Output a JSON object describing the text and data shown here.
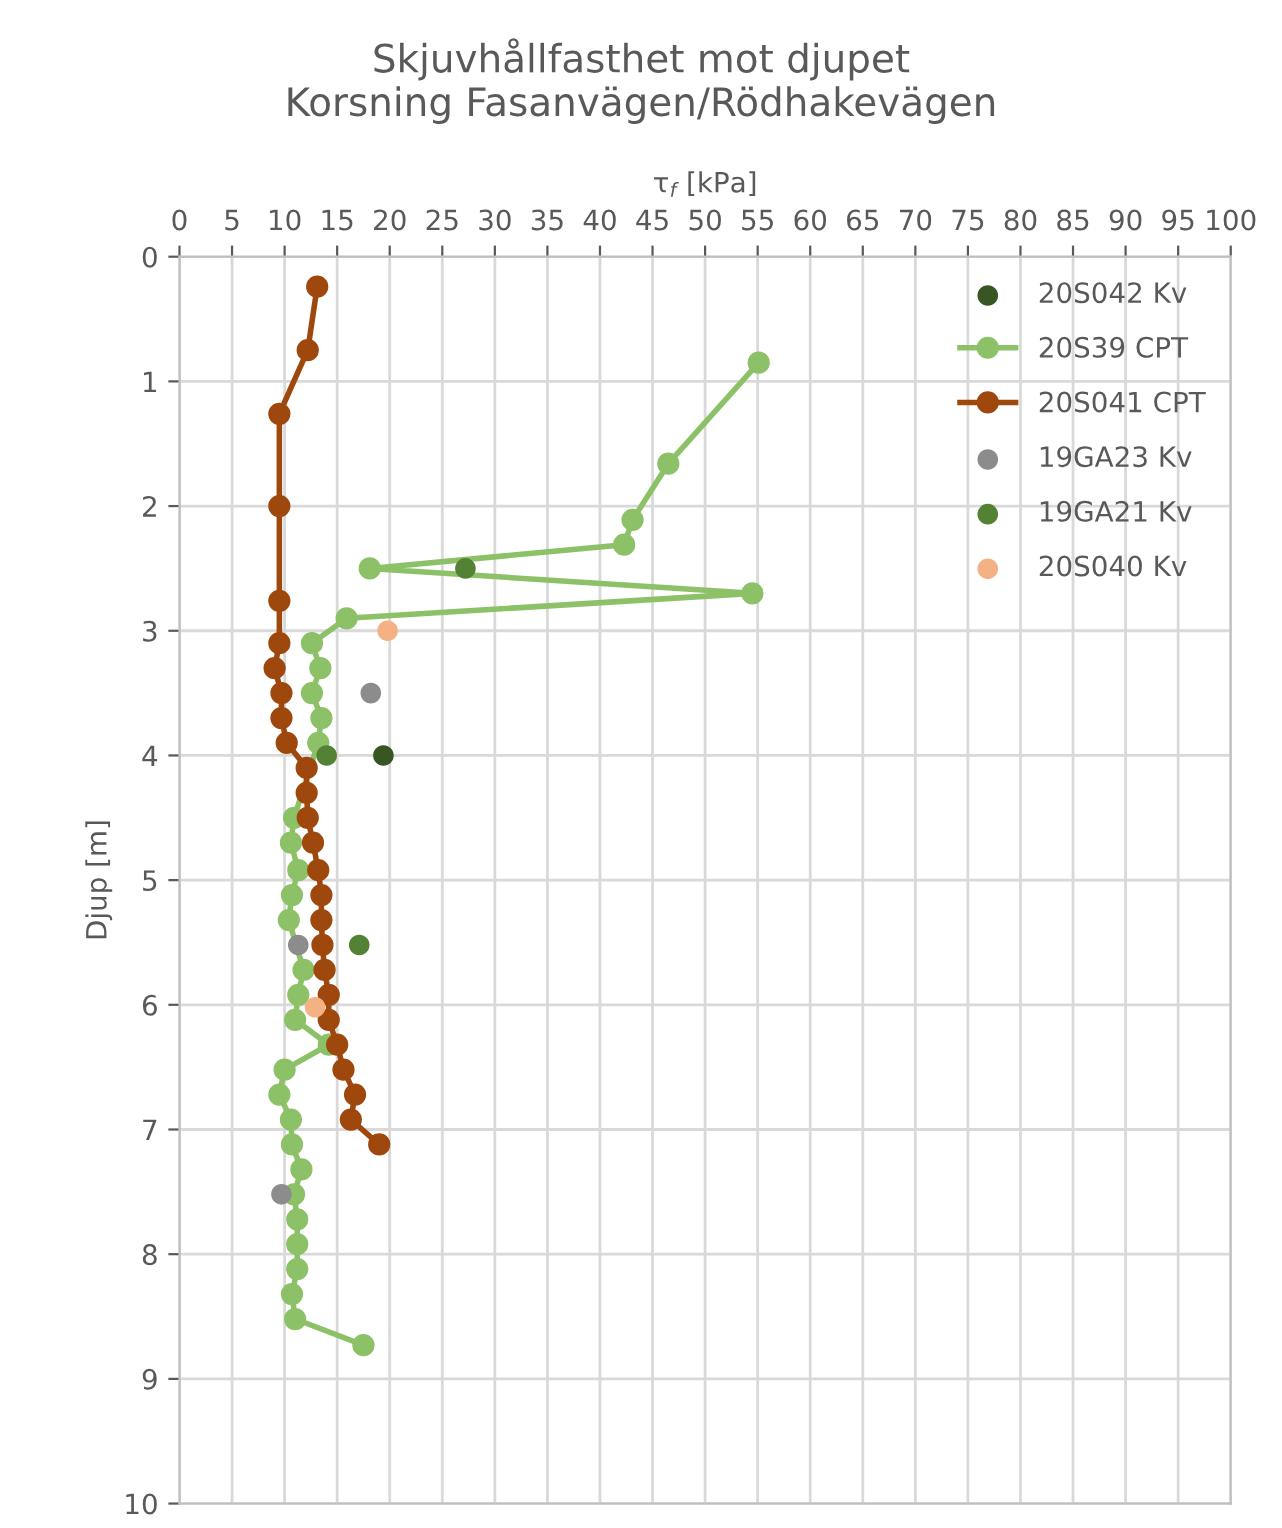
{
  "chart_data": {
    "type": "line",
    "title": "Skjuvhållfasthet mot djupet\nKorsning Fasanvägen/Rödhakevägen",
    "xlabel": "τ$_{f}$ [kPa]",
    "ylabel": "Djup [m]",
    "xlim": [
      0,
      100
    ],
    "xticks": [
      0,
      5,
      10,
      15,
      20,
      25,
      30,
      35,
      40,
      45,
      50,
      55,
      60,
      65,
      70,
      75,
      80,
      85,
      90,
      95,
      100
    ],
    "ylim": [
      10,
      0
    ],
    "yticks": [
      0,
      1,
      2,
      3,
      4,
      5,
      6,
      7,
      8,
      9,
      10
    ],
    "grid": true,
    "legend": "top right",
    "marker": "circle",
    "series": [
      {
        "name": "20S042 Kv",
        "type": "scatter",
        "color": "#375623",
        "x": [
          19.4
        ],
        "values": [
          4.0
        ]
      },
      {
        "name": "20S39 CPT",
        "color": "#8cc168",
        "x": [
          55.1,
          46.5,
          43.1,
          42.3,
          18.1,
          54.5,
          15.9,
          12.6,
          13.4,
          12.6,
          13.5,
          13.2,
          10.9,
          10.6,
          11.3,
          10.7,
          10.4,
          11.8,
          11.3,
          11.0,
          14.2,
          10.0,
          9.5,
          10.6,
          10.7,
          11.6,
          10.9,
          11.2,
          11.2,
          11.2,
          10.7,
          11.0,
          17.5
        ],
        "values": [
          0.85,
          1.66,
          2.11,
          2.31,
          2.5,
          2.7,
          2.9,
          3.1,
          3.3,
          3.5,
          3.7,
          3.9,
          4.5,
          4.7,
          4.92,
          5.12,
          5.32,
          5.72,
          5.92,
          6.12,
          6.32,
          6.52,
          6.72,
          6.92,
          7.12,
          7.32,
          7.52,
          7.72,
          7.92,
          8.12,
          8.32,
          8.52,
          8.73
        ]
      },
      {
        "name": "20S041 CPT",
        "color": "#9e480e",
        "x": [
          13.1,
          12.2,
          9.5,
          9.5,
          9.5,
          9.5,
          9.05,
          9.7,
          9.7,
          10.2,
          12.1,
          12.1,
          12.2,
          12.7,
          13.2,
          13.5,
          13.5,
          13.6,
          13.8,
          14.2,
          14.2,
          15.0,
          15.6,
          16.7,
          16.3,
          19.0
        ],
        "values": [
          0.24,
          0.75,
          1.26,
          2.0,
          2.76,
          3.1,
          3.3,
          3.5,
          3.7,
          3.9,
          4.1,
          4.3,
          4.5,
          4.7,
          4.92,
          5.12,
          5.32,
          5.52,
          5.72,
          5.92,
          6.12,
          6.32,
          6.52,
          6.72,
          6.92,
          7.12
        ]
      },
      {
        "name": "19GA23 Kv",
        "type": "scatter",
        "color": "#8c8c8c",
        "x": [
          18.2,
          11.3,
          9.7
        ],
        "values": [
          3.5,
          5.52,
          7.52
        ]
      },
      {
        "name": "19GA21 Kv",
        "type": "scatter",
        "color": "#548235",
        "x": [
          27.2,
          14.0,
          17.1
        ],
        "values": [
          2.5,
          4.0,
          5.52
        ]
      },
      {
        "name": "20S040 Kv",
        "type": "scatter",
        "color": "#f4b183",
        "x": [
          19.8,
          12.9
        ],
        "values": [
          3.0,
          6.02
        ]
      }
    ]
  }
}
